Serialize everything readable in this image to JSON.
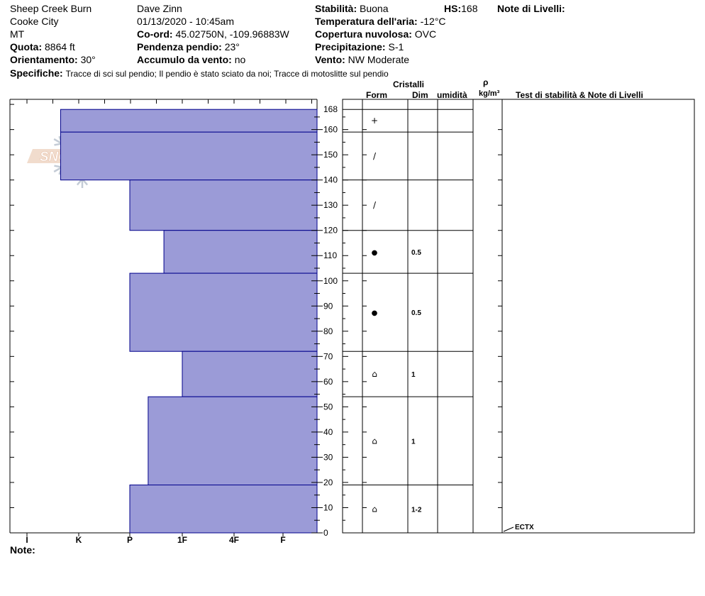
{
  "header": {
    "location": "Sheep Creek Burn",
    "city": "Cooke City",
    "state": "MT",
    "elevation_label": "Quota:",
    "elevation_value": "8864 ft",
    "aspect_label": "Orientamento:",
    "aspect_value": "30°",
    "observer": "Dave Zinn",
    "datetime": "01/13/2020 - 10:45am",
    "coord_label": "Co-ord:",
    "coord_value": "45.02750N, -109.96883W",
    "slope_label": "Pendenza pendio:",
    "slope_value": "23°",
    "wind_load_label": "Accumulo da vento:",
    "wind_load_value": "no",
    "stability_label": "Stabilità:",
    "stability_value": "Buona",
    "hs_label": "HS:",
    "hs_value": "168",
    "air_temp_label": "Temperatura dell'aria:",
    "air_temp_value": "-12°C",
    "sky_label": "Copertura nuvolosa:",
    "sky_value": "OVC",
    "precip_label": "Precipitazione:",
    "precip_value": "S-1",
    "wind_label": "Vento:",
    "wind_value": "NW Moderate",
    "layer_notes_label": "Note di Livelli:",
    "specifics_label": "Specifiche:",
    "specifics_value": "Tracce di sci sul pendio;  Il pendio è stato sciato da noi;  Tracce di motoslitte sul pendio",
    "note_label": "Note:"
  },
  "logo": {
    "text": "SNOW PILOT"
  },
  "columns": {
    "crystals": "Cristalli",
    "form": "Form",
    "dim": "Dim",
    "humidity": "umidità",
    "rho": "ρ",
    "density_unit": "kg/m³",
    "tests": "Test di stabilità & Note di Livelli"
  },
  "colors": {
    "bar_fill": "#9b9bd7",
    "bar_stroke": "#00008b",
    "axis": "#000000"
  },
  "chart_data": {
    "type": "bar",
    "orientation": "horizontal",
    "hardness_scale": [
      "I",
      "K",
      "P",
      "1F",
      "4F",
      "F"
    ],
    "y_ticks": [
      0,
      10,
      20,
      30,
      40,
      50,
      60,
      70,
      80,
      90,
      100,
      110,
      120,
      130,
      140,
      150,
      160,
      168
    ],
    "ylim": [
      0,
      168
    ],
    "layers": [
      {
        "top": 168,
        "bottom": 159,
        "hardness_index": 0.65,
        "form": "+",
        "size": ""
      },
      {
        "top": 159,
        "bottom": 140,
        "hardness_index": 0.65,
        "form": "/",
        "size": ""
      },
      {
        "top": 140,
        "bottom": 120,
        "hardness_index": 2.0,
        "form": "/",
        "size": ""
      },
      {
        "top": 120,
        "bottom": 103,
        "hardness_index": 2.65,
        "form": "●",
        "size": "0.5"
      },
      {
        "top": 103,
        "bottom": 72,
        "hardness_index": 2.0,
        "form": "●",
        "size": "0.5"
      },
      {
        "top": 72,
        "bottom": 54,
        "hardness_index": 3.0,
        "form": "⌂",
        "size": "1"
      },
      {
        "top": 54,
        "bottom": 19,
        "hardness_index": 2.35,
        "form": "⌂",
        "size": "1"
      },
      {
        "top": 19,
        "bottom": 0,
        "hardness_index": 2.0,
        "form": "⌂",
        "size": "1-2"
      }
    ],
    "tests": [
      {
        "height": 0,
        "label": "ECTX"
      }
    ]
  }
}
